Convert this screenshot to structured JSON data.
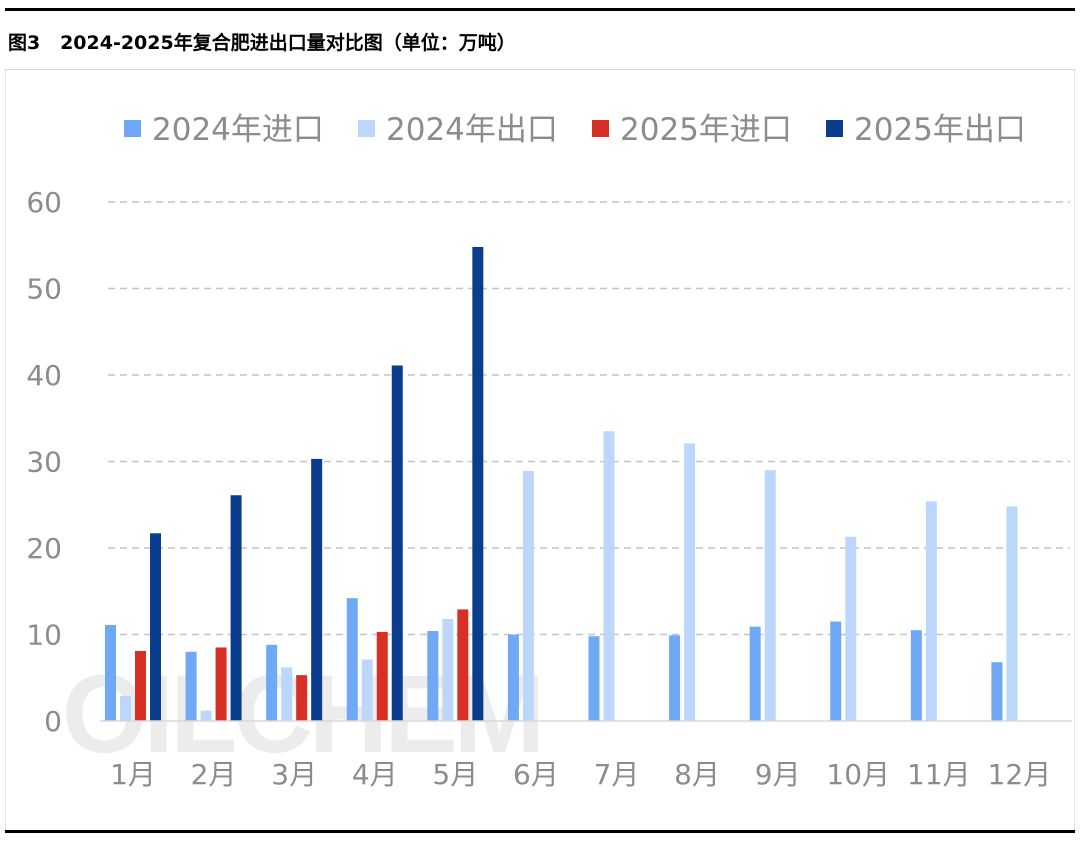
{
  "figure": {
    "title": "图3   2024-2025年复合肥进出口量对比图（单位：万吨）",
    "watermark": "OILCHEM"
  },
  "chart_data": {
    "type": "bar",
    "title": "图3   2024-2025年复合肥进出口量对比图（单位：万吨）",
    "xlabel": "",
    "ylabel": "",
    "ylim": [
      0,
      60
    ],
    "yticks": [
      0,
      10,
      20,
      30,
      40,
      50,
      60
    ],
    "grid": "horizontal dashed",
    "legend_position": "top",
    "categories": [
      "1月",
      "2月",
      "3月",
      "4月",
      "5月",
      "6月",
      "7月",
      "8月",
      "9月",
      "10月",
      "11月",
      "12月"
    ],
    "series": [
      {
        "name": "2024年进口",
        "color": "#6fa8f5",
        "values": [
          11.1,
          8.0,
          8.8,
          14.2,
          10.4,
          10.0,
          9.8,
          9.9,
          10.9,
          11.5,
          10.5,
          6.8
        ]
      },
      {
        "name": "2024年出口",
        "color": "#bcd7fb",
        "values": [
          2.9,
          1.2,
          6.2,
          7.1,
          11.8,
          28.9,
          33.5,
          32.1,
          29.0,
          21.3,
          25.4,
          24.8
        ]
      },
      {
        "name": "2025年进口",
        "color": "#d93025",
        "values": [
          8.1,
          8.5,
          5.3,
          10.3,
          12.9,
          null,
          null,
          null,
          null,
          null,
          null,
          null
        ]
      },
      {
        "name": "2025年出口",
        "color": "#0b3d8f",
        "values": [
          21.7,
          26.1,
          30.3,
          41.1,
          54.8,
          null,
          null,
          null,
          null,
          null,
          null,
          null
        ]
      }
    ]
  }
}
